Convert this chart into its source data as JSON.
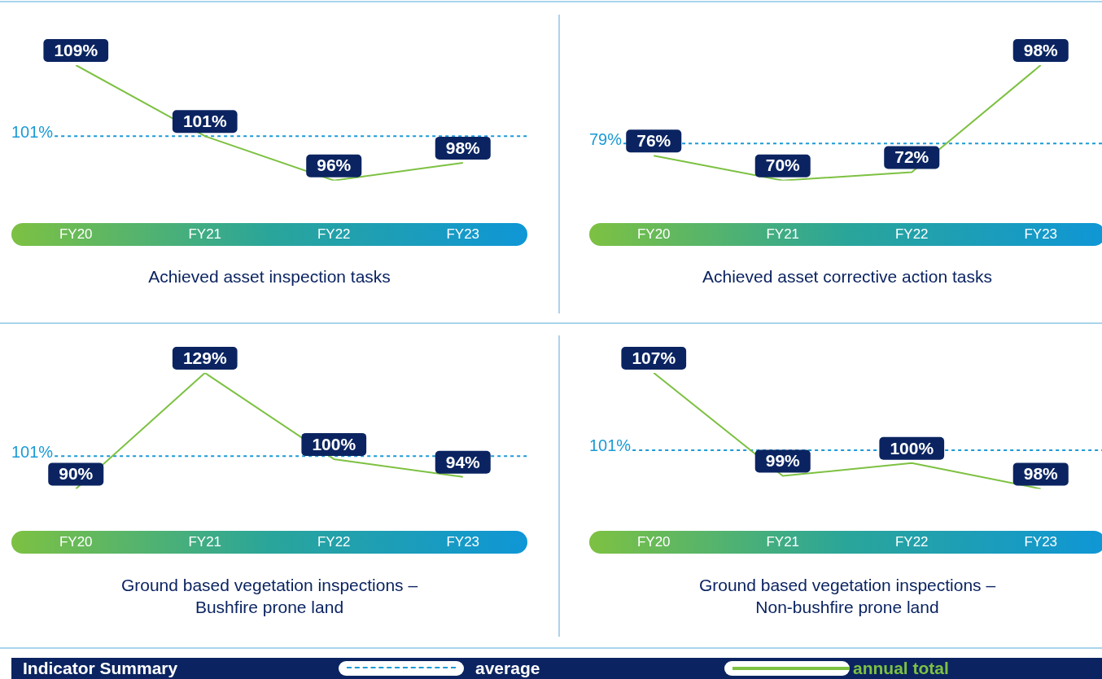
{
  "chart_data": [
    {
      "type": "line",
      "title": "Achieved asset inspection tasks",
      "categories": [
        "FY20",
        "FY21",
        "FY22",
        "FY23"
      ],
      "series": [
        {
          "name": "annual total",
          "color": "#7dc142",
          "values": [
            109,
            101,
            96,
            98
          ],
          "value_labels": [
            "109%",
            "101%",
            "96%",
            "98%"
          ]
        }
      ],
      "ref_lines": [
        {
          "axis": "y",
          "value": 101,
          "label": "101%",
          "color": "#1a9ad6",
          "line_style": "dashed"
        }
      ],
      "marker": "none",
      "grid": false,
      "tick_labels": "x",
      "legend": "bottom",
      "legend_title": "Indicator Summary",
      "annotations": [
        "average"
      ]
    },
    {
      "type": "line",
      "title": "Achieved asset corrective action tasks",
      "categories": [
        "FY20",
        "FY21",
        "FY22",
        "FY23"
      ],
      "series": [
        {
          "color": "#7dc142",
          "values": [
            76,
            70,
            72,
            98
          ],
          "value_labels": [
            "76%",
            "70%",
            "72%",
            "98%"
          ]
        }
      ],
      "ref_lines": [
        {
          "axis": "y",
          "value": 79,
          "label": "79%",
          "color": "#1a9ad6",
          "line_style": "dashed"
        }
      ],
      "marker": "none",
      "grid": false,
      "tick_labels": "x"
    },
    {
      "type": "line",
      "title": "Ground based vegetation inspections –\nBushfire prone land",
      "categories": [
        "FY20",
        "FY21",
        "FY22",
        "FY23"
      ],
      "series": [
        {
          "color": "#7dc142",
          "values": [
            90,
            129,
            100,
            94
          ],
          "value_labels": [
            "90%",
            "129%",
            "100%",
            "94%"
          ]
        }
      ],
      "ref_lines": [
        {
          "axis": "y",
          "value": 101,
          "label": "101%",
          "color": "#1a9ad6",
          "line_style": "dashed"
        }
      ],
      "marker": "none",
      "grid": false,
      "tick_labels": "x"
    },
    {
      "type": "line",
      "title": "Ground based vegetation inspections –\nNon-bushfire prone land",
      "categories": [
        "FY20",
        "FY21",
        "FY22",
        "FY23"
      ],
      "series": [
        {
          "color": "#7dc142",
          "values": [
            107,
            99,
            100,
            98
          ],
          "value_labels": [
            "107%",
            "99%",
            "100%",
            "98%"
          ]
        }
      ],
      "ref_lines": [
        {
          "axis": "y",
          "value": 101,
          "label": "101%",
          "color": "#1a9ad6",
          "line_style": "dashed"
        }
      ],
      "marker": "none",
      "grid": false,
      "tick_labels": "x"
    }
  ]
}
